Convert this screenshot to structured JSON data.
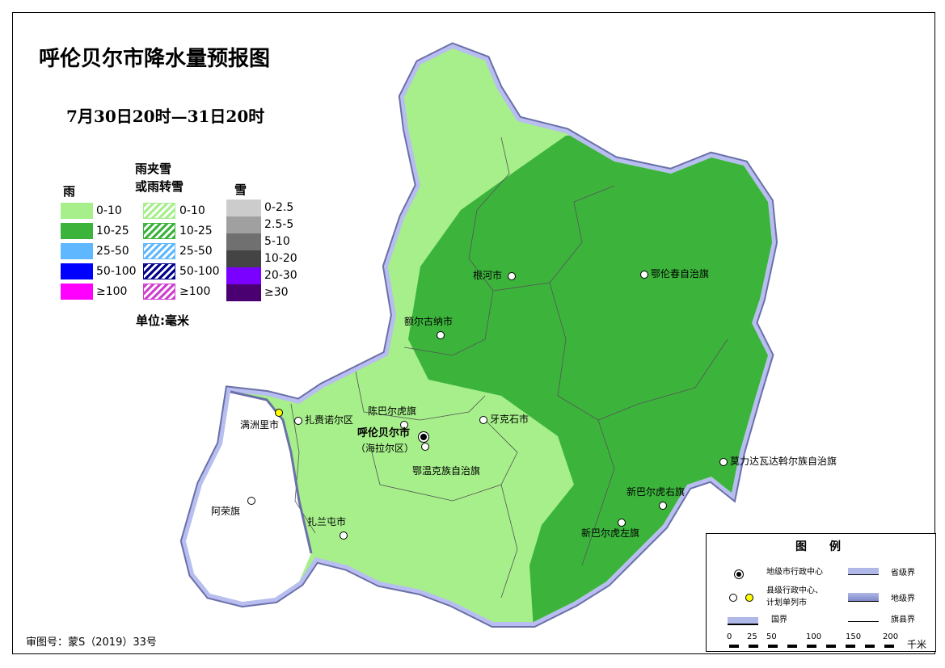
{
  "title": "呼伦贝尔市降水量预报图",
  "subtitle": "7月30日20时—31日20时",
  "legend": {
    "rain_title": "雨",
    "mixed_title_1": "雨夹雪",
    "mixed_title_2": "或雨转雪",
    "snow_title": "雪",
    "rain": [
      {
        "label": "0-10",
        "color": "#a6ef8a"
      },
      {
        "label": "10-25",
        "color": "#3cb43c"
      },
      {
        "label": "25-50",
        "color": "#5fb8ff"
      },
      {
        "label": "50-100",
        "color": "#0000ff"
      },
      {
        "label": "≥100",
        "color": "#ff00ff"
      }
    ],
    "mixed": [
      {
        "label": "0-10",
        "color": "#a6ef8a"
      },
      {
        "label": "10-25",
        "color": "#3cb43c"
      },
      {
        "label": "25-50",
        "color": "#5fb8ff"
      },
      {
        "label": "50-100",
        "color": "#00008c"
      },
      {
        "label": "≥100",
        "color": "#d040d0"
      }
    ],
    "snow": [
      {
        "label": "0-2.5",
        "color": "#cccccc"
      },
      {
        "label": "2.5-5",
        "color": "#a0a0a0"
      },
      {
        "label": "5-10",
        "color": "#707070"
      },
      {
        "label": "10-20",
        "color": "#444444"
      },
      {
        "label": "20-30",
        "color": "#7a00ff"
      },
      {
        "label": "≥30",
        "color": "#4a0070"
      }
    ],
    "unit": "单位:毫米"
  },
  "map_legend": {
    "title": "图　　例",
    "prefecture_center": "地级市行政中心",
    "county_center_1": "县级行政中心、",
    "county_center_2": "计划单列市",
    "national_border": "国界",
    "provincial_border": "省级界",
    "prefecture_border": "地级界",
    "county_border": "旗县界",
    "scale": [
      "0",
      "25",
      "50",
      "100",
      "150",
      "200"
    ],
    "scale_unit": "千米"
  },
  "cities": [
    {
      "name": "根河市",
      "type": "county"
    },
    {
      "name": "鄂伦春自治旗",
      "type": "county"
    },
    {
      "name": "额尔古纳市",
      "type": "county"
    },
    {
      "name": "满洲里市",
      "type": "planned"
    },
    {
      "name": "扎赉诺尔区",
      "type": "county"
    },
    {
      "name": "陈巴尔虎旗",
      "type": "county"
    },
    {
      "name": "牙克石市",
      "type": "county"
    },
    {
      "name": "呼伦贝尔市",
      "type": "prefecture"
    },
    {
      "name": "（海拉尔区）",
      "type": "label"
    },
    {
      "name": "鄂温克族自治旗",
      "type": "county"
    },
    {
      "name": "莫力达瓦达斡尔族自治旗",
      "type": "county"
    },
    {
      "name": "新巴尔虎右旗",
      "type": "county"
    },
    {
      "name": "新巴尔虎左旗",
      "type": "county"
    },
    {
      "name": "阿荣旗",
      "type": "county"
    },
    {
      "name": "扎兰屯市",
      "type": "county"
    }
  ],
  "approval": "审图号：蒙S（2019）33号",
  "colors": {
    "light_rain": "#a6ef8a",
    "moderate_rain": "#3cb43c",
    "border": "#a0a8e0"
  }
}
